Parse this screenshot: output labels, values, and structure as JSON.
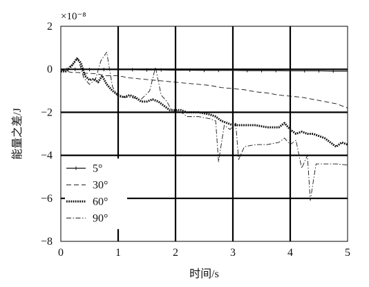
{
  "chart_data": {
    "type": "line",
    "title": "",
    "xlabel": "时间/s",
    "ylabel": "能量之差/J",
    "y_scale_note": "×10⁻⁸",
    "xlim": [
      0,
      5
    ],
    "ylim": [
      -8,
      2
    ],
    "x_ticks": [
      0,
      1,
      2,
      3,
      4,
      5
    ],
    "y_ticks": [
      2,
      0,
      -2,
      -4,
      -6,
      -8
    ],
    "x_tick_labels": [
      "0",
      "1",
      "2",
      "3",
      "4",
      "5"
    ],
    "y_tick_labels": [
      "2",
      "0",
      "−2",
      "−4",
      "−6",
      "−8"
    ],
    "grid": true,
    "legend_position": "bottom-left",
    "series": [
      {
        "name": "5°",
        "style": "solid-marker",
        "color": "#111111",
        "points": [
          [
            0.0,
            0.0
          ],
          [
            0.25,
            0.0
          ],
          [
            0.5,
            -0.01
          ],
          [
            0.75,
            -0.01
          ],
          [
            1.0,
            -0.02
          ],
          [
            1.25,
            -0.02
          ],
          [
            1.5,
            -0.03
          ],
          [
            1.75,
            -0.03
          ],
          [
            2.0,
            -0.04
          ],
          [
            2.25,
            -0.04
          ],
          [
            2.5,
            -0.05
          ],
          [
            2.75,
            -0.05
          ],
          [
            3.0,
            -0.05
          ],
          [
            3.25,
            -0.06
          ],
          [
            3.5,
            -0.06
          ],
          [
            3.75,
            -0.06
          ],
          [
            4.0,
            -0.07
          ],
          [
            4.25,
            -0.07
          ],
          [
            4.5,
            -0.07
          ],
          [
            4.75,
            -0.08
          ],
          [
            5.0,
            -0.08
          ]
        ]
      },
      {
        "name": "30°",
        "style": "dashed",
        "color": "#111111",
        "points": [
          [
            0.0,
            0.0
          ],
          [
            0.1,
            -0.1
          ],
          [
            0.2,
            -0.15
          ],
          [
            0.3,
            -0.15
          ],
          [
            0.4,
            -0.18
          ],
          [
            0.6,
            -0.2
          ],
          [
            0.8,
            -0.3
          ],
          [
            1.0,
            -0.3
          ],
          [
            1.2,
            -0.4
          ],
          [
            1.4,
            -0.45
          ],
          [
            1.6,
            -0.5
          ],
          [
            1.8,
            -0.55
          ],
          [
            2.0,
            -0.6
          ],
          [
            2.2,
            -0.65
          ],
          [
            2.4,
            -0.7
          ],
          [
            2.6,
            -0.75
          ],
          [
            2.8,
            -0.85
          ],
          [
            3.0,
            -0.9
          ],
          [
            3.2,
            -0.95
          ],
          [
            3.4,
            -1.05
          ],
          [
            3.6,
            -1.1
          ],
          [
            3.8,
            -1.2
          ],
          [
            4.0,
            -1.25
          ],
          [
            4.2,
            -1.3
          ],
          [
            4.4,
            -1.4
          ],
          [
            4.6,
            -1.5
          ],
          [
            4.8,
            -1.6
          ],
          [
            5.0,
            -1.8
          ]
        ]
      },
      {
        "name": "60°",
        "style": "dotted",
        "color": "#111111",
        "points": [
          [
            0.0,
            -0.1
          ],
          [
            0.1,
            -0.1
          ],
          [
            0.2,
            0.2
          ],
          [
            0.28,
            0.5
          ],
          [
            0.35,
            0.3
          ],
          [
            0.42,
            -0.3
          ],
          [
            0.5,
            -0.5
          ],
          [
            0.58,
            -0.45
          ],
          [
            0.65,
            -0.6
          ],
          [
            0.72,
            -0.3
          ],
          [
            0.8,
            -0.7
          ],
          [
            0.9,
            -1.0
          ],
          [
            1.0,
            -1.2
          ],
          [
            1.1,
            -1.3
          ],
          [
            1.2,
            -1.2
          ],
          [
            1.3,
            -1.3
          ],
          [
            1.4,
            -1.5
          ],
          [
            1.5,
            -1.5
          ],
          [
            1.6,
            -1.4
          ],
          [
            1.7,
            -1.5
          ],
          [
            1.8,
            -1.7
          ],
          [
            1.9,
            -1.9
          ],
          [
            2.0,
            -1.9
          ],
          [
            2.1,
            -1.9
          ],
          [
            2.2,
            -2.0
          ],
          [
            2.4,
            -2.0
          ],
          [
            2.6,
            -2.1
          ],
          [
            2.7,
            -2.2
          ],
          [
            2.8,
            -2.4
          ],
          [
            2.9,
            -2.5
          ],
          [
            3.0,
            -2.6
          ],
          [
            3.2,
            -2.6
          ],
          [
            3.4,
            -2.6
          ],
          [
            3.6,
            -2.7
          ],
          [
            3.8,
            -2.7
          ],
          [
            3.9,
            -2.5
          ],
          [
            4.0,
            -2.8
          ],
          [
            4.1,
            -3.0
          ],
          [
            4.2,
            -2.9
          ],
          [
            4.3,
            -3.0
          ],
          [
            4.4,
            -3.0
          ],
          [
            4.5,
            -3.1
          ],
          [
            4.6,
            -3.2
          ],
          [
            4.7,
            -3.4
          ],
          [
            4.8,
            -3.6
          ],
          [
            4.9,
            -3.4
          ],
          [
            5.0,
            -3.5
          ]
        ]
      },
      {
        "name": "90°",
        "style": "dash-dot",
        "color": "#111111",
        "points": [
          [
            0.0,
            -0.1
          ],
          [
            0.2,
            0.2
          ],
          [
            0.3,
            0.5
          ],
          [
            0.4,
            -0.4
          ],
          [
            0.5,
            -0.7
          ],
          [
            0.6,
            -0.5
          ],
          [
            0.7,
            0.4
          ],
          [
            0.8,
            0.8
          ],
          [
            0.9,
            -0.8
          ],
          [
            1.0,
            -1.3
          ],
          [
            1.2,
            -1.3
          ],
          [
            1.4,
            -1.4
          ],
          [
            1.55,
            -1.0
          ],
          [
            1.65,
            0.1
          ],
          [
            1.75,
            -1.2
          ],
          [
            1.85,
            -1.5
          ],
          [
            1.95,
            -2.0
          ],
          [
            2.0,
            -1.9
          ],
          [
            2.1,
            -2.0
          ],
          [
            2.2,
            -2.2
          ],
          [
            2.4,
            -2.2
          ],
          [
            2.6,
            -2.3
          ],
          [
            2.7,
            -2.4
          ],
          [
            2.75,
            -4.3
          ],
          [
            2.85,
            -2.6
          ],
          [
            2.95,
            -2.8
          ],
          [
            3.05,
            -2.5
          ],
          [
            3.1,
            -4.2
          ],
          [
            3.2,
            -3.6
          ],
          [
            3.4,
            -3.5
          ],
          [
            3.6,
            -3.5
          ],
          [
            3.8,
            -3.4
          ],
          [
            3.9,
            -3.2
          ],
          [
            4.0,
            -3.5
          ],
          [
            4.1,
            -3.3
          ],
          [
            4.2,
            -4.6
          ],
          [
            4.3,
            -4.0
          ],
          [
            4.35,
            -6.1
          ],
          [
            4.45,
            -4.4
          ],
          [
            4.6,
            -4.4
          ],
          [
            4.8,
            -4.4
          ],
          [
            5.0,
            -4.45
          ]
        ]
      }
    ]
  }
}
